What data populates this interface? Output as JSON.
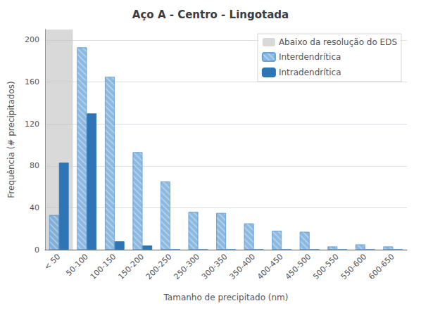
{
  "chart_data": {
    "type": "bar",
    "title": "Aço A - Centro - Lingotada",
    "xlabel": "Tamanho de precipitado (nm)",
    "ylabel": "Frequência (# precipitados)",
    "categories": [
      "< 50",
      "50-100",
      "100-150",
      "150-200",
      "200-250",
      "250-300",
      "300-350",
      "350-400",
      "400-450",
      "450-500",
      "500-550",
      "550-600",
      "600-650"
    ],
    "series": [
      {
        "name": "Interdendrítica",
        "color": "#5B9BD5",
        "values": [
          33,
          193,
          165,
          93,
          65,
          36,
          35,
          25,
          18,
          17,
          3,
          5,
          3
        ]
      },
      {
        "name": "Intradendrítica",
        "color": "#2E75B6",
        "values": [
          83,
          130,
          8,
          4,
          0,
          0,
          0,
          0,
          0,
          0,
          0,
          0,
          0
        ]
      }
    ],
    "highlight": {
      "label": "Abaixo da resolução do EDS",
      "color": "#C0C0C0",
      "categories": [
        "< 50"
      ]
    },
    "ylim": [
      0,
      210
    ],
    "yticks": [
      0,
      40,
      80,
      120,
      160,
      200
    ],
    "grid": true,
    "legend": "upper right"
  }
}
